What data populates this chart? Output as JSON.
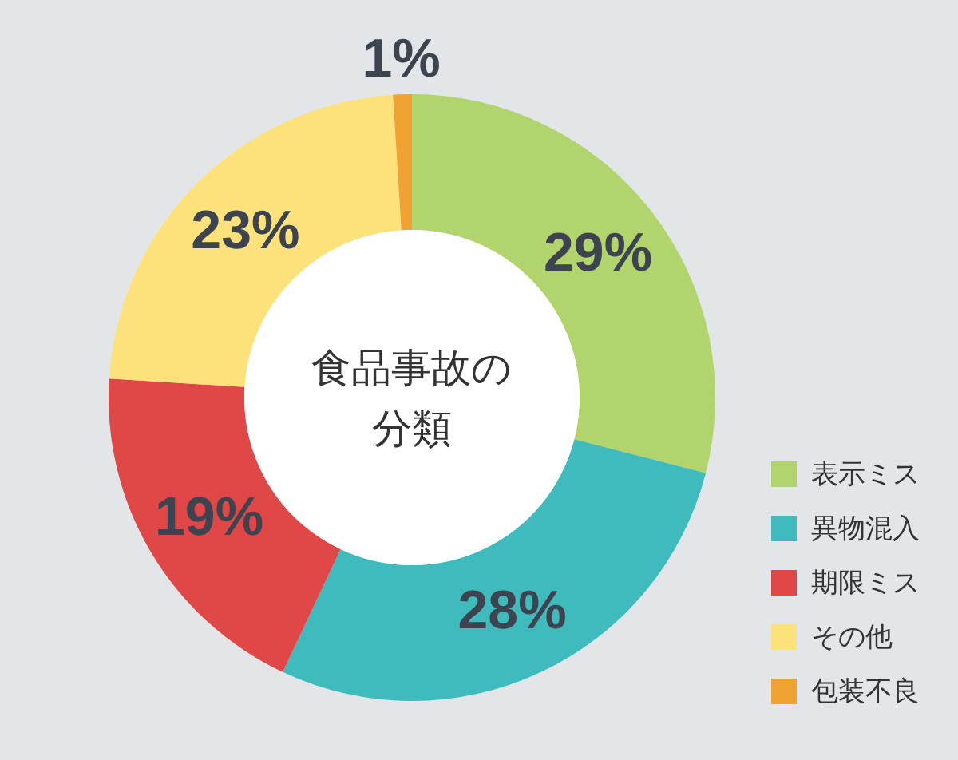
{
  "chart_data": {
    "type": "donut",
    "title": "食品事故の分類",
    "categories": [
      "表示ミス",
      "異物混入",
      "期限ミス",
      "その他",
      "包装不良"
    ],
    "values": [
      29,
      28,
      19,
      23,
      1
    ],
    "value_labels": [
      "29%",
      "28%",
      "19%",
      "23%",
      "1%"
    ],
    "colors": [
      "#b1d46c",
      "#3fbbbd",
      "#e04848",
      "#fde27c",
      "#f0a233"
    ],
    "legend": "bottom right"
  }
}
